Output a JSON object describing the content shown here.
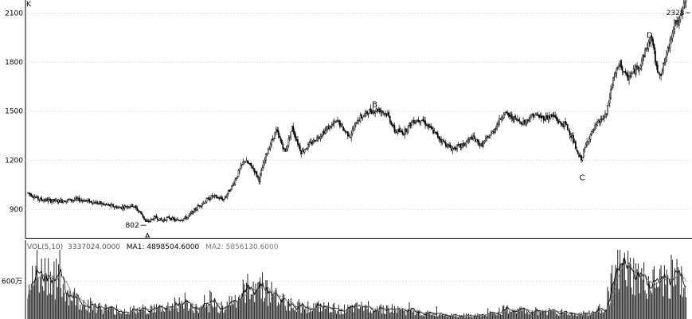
{
  "chart_data": [
    {
      "type": "candlestick",
      "corner_label": "K",
      "ylim": [
        720,
        2180
      ],
      "y_ticks": [
        900,
        1200,
        1500,
        1800,
        2100
      ],
      "grid": "horizontal-dotted",
      "colors": {
        "candle": "#000000",
        "grid": "#cccccc",
        "axis": "#000000"
      },
      "waypoints": [
        {
          "i": 0,
          "v": 1000
        },
        {
          "i": 10,
          "v": 960
        },
        {
          "i": 25,
          "v": 950
        },
        {
          "i": 45,
          "v": 960
        },
        {
          "i": 60,
          "v": 940
        },
        {
          "i": 80,
          "v": 910
        },
        {
          "i": 92,
          "v": 925
        },
        {
          "i": 100,
          "v": 870
        },
        {
          "i": 104,
          "v": 820
        },
        {
          "i": 112,
          "v": 850
        },
        {
          "i": 118,
          "v": 830
        },
        {
          "i": 124,
          "v": 850
        },
        {
          "i": 130,
          "v": 830
        },
        {
          "i": 140,
          "v": 850
        },
        {
          "i": 150,
          "v": 920
        },
        {
          "i": 162,
          "v": 980
        },
        {
          "i": 172,
          "v": 960
        },
        {
          "i": 180,
          "v": 1050
        },
        {
          "i": 190,
          "v": 1200
        },
        {
          "i": 198,
          "v": 1150
        },
        {
          "i": 203,
          "v": 1080
        },
        {
          "i": 210,
          "v": 1250
        },
        {
          "i": 218,
          "v": 1380
        },
        {
          "i": 226,
          "v": 1250
        },
        {
          "i": 232,
          "v": 1400
        },
        {
          "i": 240,
          "v": 1250
        },
        {
          "i": 248,
          "v": 1300
        },
        {
          "i": 256,
          "v": 1350
        },
        {
          "i": 264,
          "v": 1400
        },
        {
          "i": 272,
          "v": 1440
        },
        {
          "i": 278,
          "v": 1380
        },
        {
          "i": 283,
          "v": 1350
        },
        {
          "i": 290,
          "v": 1450
        },
        {
          "i": 300,
          "v": 1500
        },
        {
          "i": 308,
          "v": 1510
        },
        {
          "i": 316,
          "v": 1480
        },
        {
          "i": 322,
          "v": 1380
        },
        {
          "i": 330,
          "v": 1370
        },
        {
          "i": 338,
          "v": 1440
        },
        {
          "i": 346,
          "v": 1450
        },
        {
          "i": 354,
          "v": 1390
        },
        {
          "i": 362,
          "v": 1330
        },
        {
          "i": 372,
          "v": 1270
        },
        {
          "i": 382,
          "v": 1290
        },
        {
          "i": 390,
          "v": 1340
        },
        {
          "i": 398,
          "v": 1290
        },
        {
          "i": 408,
          "v": 1370
        },
        {
          "i": 418,
          "v": 1490
        },
        {
          "i": 428,
          "v": 1450
        },
        {
          "i": 436,
          "v": 1430
        },
        {
          "i": 444,
          "v": 1480
        },
        {
          "i": 452,
          "v": 1460
        },
        {
          "i": 462,
          "v": 1470
        },
        {
          "i": 468,
          "v": 1420
        },
        {
          "i": 472,
          "v": 1420
        },
        {
          "i": 478,
          "v": 1340
        },
        {
          "i": 483,
          "v": 1230
        },
        {
          "i": 486,
          "v": 1210
        },
        {
          "i": 492,
          "v": 1330
        },
        {
          "i": 500,
          "v": 1420
        },
        {
          "i": 508,
          "v": 1480
        },
        {
          "i": 514,
          "v": 1700
        },
        {
          "i": 520,
          "v": 1790
        },
        {
          "i": 526,
          "v": 1700
        },
        {
          "i": 532,
          "v": 1740
        },
        {
          "i": 538,
          "v": 1790
        },
        {
          "i": 544,
          "v": 1900
        },
        {
          "i": 548,
          "v": 1950
        },
        {
          "i": 552,
          "v": 1760
        },
        {
          "i": 556,
          "v": 1730
        },
        {
          "i": 562,
          "v": 1870
        },
        {
          "i": 568,
          "v": 2050
        },
        {
          "i": 572,
          "v": 2040
        },
        {
          "i": 575,
          "v": 2120
        },
        {
          "i": 578,
          "v": 2200
        }
      ],
      "annotations": [
        {
          "label": "802",
          "i": 104,
          "value": 802
        },
        {
          "label": "A",
          "i": 105,
          "value": 800
        },
        {
          "label": "B",
          "i": 306,
          "value": 1520
        },
        {
          "label": "C",
          "i": 486,
          "value": 1205
        },
        {
          "label": "D",
          "i": 546,
          "value": 1930
        },
        {
          "label": "2328",
          "i": 578,
          "value": 2328
        }
      ]
    },
    {
      "type": "bar",
      "legend": [
        {
          "label": "VOL(5,10)",
          "value": "3337024.0000",
          "color": "#555555"
        },
        {
          "label": "MA1:",
          "value": "4898504.6000",
          "color": "#000000"
        },
        {
          "label": "MA2:",
          "value": "5856130.6000",
          "color": "#777777"
        }
      ],
      "ylim": [
        0,
        1100
      ],
      "y_tick_label": "600万",
      "y_tick_value": 600,
      "waypoints": [
        {
          "i": 0,
          "v": 500
        },
        {
          "i": 12,
          "v": 700
        },
        {
          "i": 20,
          "v": 750
        },
        {
          "i": 30,
          "v": 500
        },
        {
          "i": 45,
          "v": 280
        },
        {
          "i": 60,
          "v": 200
        },
        {
          "i": 80,
          "v": 120
        },
        {
          "i": 100,
          "v": 150
        },
        {
          "i": 120,
          "v": 180
        },
        {
          "i": 135,
          "v": 250
        },
        {
          "i": 150,
          "v": 150
        },
        {
          "i": 170,
          "v": 200
        },
        {
          "i": 185,
          "v": 350
        },
        {
          "i": 200,
          "v": 580
        },
        {
          "i": 208,
          "v": 500
        },
        {
          "i": 220,
          "v": 300
        },
        {
          "i": 240,
          "v": 200
        },
        {
          "i": 260,
          "v": 180
        },
        {
          "i": 280,
          "v": 150
        },
        {
          "i": 300,
          "v": 200
        },
        {
          "i": 320,
          "v": 160
        },
        {
          "i": 340,
          "v": 100
        },
        {
          "i": 360,
          "v": 80
        },
        {
          "i": 380,
          "v": 60
        },
        {
          "i": 400,
          "v": 60
        },
        {
          "i": 420,
          "v": 150
        },
        {
          "i": 440,
          "v": 120
        },
        {
          "i": 460,
          "v": 130
        },
        {
          "i": 480,
          "v": 80
        },
        {
          "i": 495,
          "v": 100
        },
        {
          "i": 505,
          "v": 180
        },
        {
          "i": 515,
          "v": 650
        },
        {
          "i": 522,
          "v": 800
        },
        {
          "i": 530,
          "v": 700
        },
        {
          "i": 540,
          "v": 600
        },
        {
          "i": 550,
          "v": 550
        },
        {
          "i": 560,
          "v": 600
        },
        {
          "i": 570,
          "v": 650
        },
        {
          "i": 578,
          "v": 500
        }
      ]
    }
  ]
}
